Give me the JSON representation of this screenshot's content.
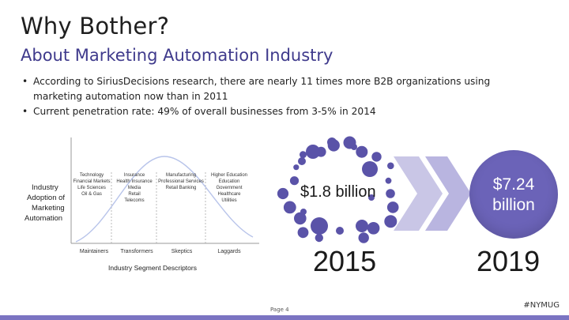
{
  "slide": {
    "title": "Why Bother?",
    "subtitle": "About Marketing Automation Industry",
    "bullets": [
      "According to SiriusDecisions research, there are nearly 11 times more B2B organizations using marketing automation now than in 2011",
      "Current penetration rate: 49% of overall businesses from 3-5% in 2014"
    ],
    "bullet_marker": "•"
  },
  "diagram": {
    "y_label_lines": [
      "Industry",
      "Adoption of",
      "Marketing",
      "Automation"
    ],
    "columns": [
      {
        "lines": [
          "Technology",
          "Financial Markets",
          "Life Sciences",
          "Oil & Gas"
        ]
      },
      {
        "lines": [
          "Insurance",
          "Health Insurance",
          "Media",
          "Retail",
          "Telecoms"
        ]
      },
      {
        "lines": [
          "Manufacturing",
          "Professional Services",
          "Retail Banking"
        ]
      },
      {
        "lines": [
          "Higher Education",
          "Education",
          "Government",
          "Healthcare",
          "Utilities"
        ]
      }
    ],
    "segments": [
      "Maintainers",
      "Transformers",
      "Skeptics",
      "Laggards"
    ],
    "x_label": "Industry Segment Descriptors"
  },
  "market": {
    "value_2015": "$1.8 billion",
    "year_2015": "2015",
    "value_2019_lines": [
      "$7.24",
      "billion"
    ],
    "year_2019": "2019"
  },
  "footer": {
    "page": "Page 4",
    "hashtag": "#NYMUG"
  },
  "colors": {
    "accent": "#3f3a8c",
    "dot": "#5a53a8",
    "circle": "#6b63b8",
    "chevron": "#c9c6e6",
    "footer_bar": "#7b74c2"
  }
}
